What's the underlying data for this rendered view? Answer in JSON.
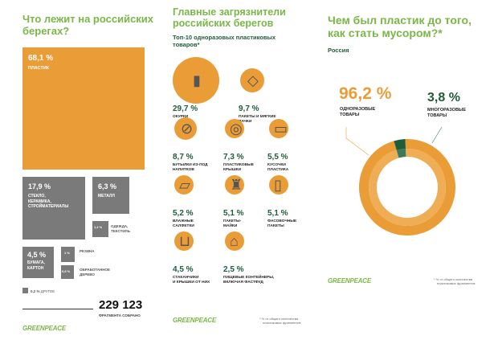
{
  "left": {
    "title_l1": "Что лежит на российских",
    "title_l2": "берегах?",
    "total": "229 123",
    "total_label": "ФРАГМЕНТА СОБРАНО",
    "logo": "GREENPEACE"
  },
  "middle": {
    "title_l1": "Главные загрязнители",
    "title_l2": "российских берегов",
    "subtitle_l1": "Топ-10 одноразовых пластиковых",
    "subtitle_l2": "товаров*",
    "logo": "GREENPEACE",
    "footnote_l1": "* % от общего количества",
    "footnote_l2": "пластиковых фрагментов"
  },
  "right": {
    "title_l1": "Чем был пластик до того,",
    "title_l2": "как стать мусором?*",
    "region": "Россия",
    "logo": "GREENPEACE",
    "footnote_l1": "* % от общего количества",
    "footnote_l2": "пластиковых фрагментов"
  },
  "colors": {
    "orange": "#ea9d37",
    "orange_light": "#efae55",
    "gray": "#7a7a7a",
    "green": "#7ab648",
    "dark_green": "#1f5c3a",
    "dark_green_light": "#3d7a5a"
  },
  "chart_data": [
    {
      "type": "treemap",
      "title": "Что лежит на российских берегах?",
      "items": [
        {
          "label": "68,1 %",
          "name": "ПЛАСТИК",
          "value": 68.1
        },
        {
          "label": "17,9 %",
          "name": "СТЕКЛО, КЕРАМИКА, СТРОЙМАТЕРИАЛЫ",
          "name_l1": "СТЕКЛО,",
          "name_l2": "КЕРАМИКА,",
          "name_l3": "СТРОЙМАТЕРИАЛЫ",
          "value": 17.9
        },
        {
          "label": "6,3 %",
          "name": "МЕТАЛЛ",
          "value": 6.3
        },
        {
          "label": "1,2 %",
          "name_l1": "ОДЕЖДА,",
          "name_l2": "ТЕКСТИЛЬ",
          "value": 1.2
        },
        {
          "label": "4,5 %",
          "name_l1": "БУМАГА,",
          "name_l2": "КАРТОН",
          "value": 4.5
        },
        {
          "label": "1 %",
          "name": "РЕЗИНА",
          "value": 1.0
        },
        {
          "label": "0,6 %",
          "name_l1": "ОБРАБОТАННОЕ",
          "name_l2": "ДЕРЕВО",
          "value": 0.6
        },
        {
          "label": "0,2 %",
          "name": "ДРУГОЕ",
          "value": 0.2
        }
      ]
    },
    {
      "type": "bar",
      "title": "Топ-10 одноразовых пластиковых товаров",
      "items": [
        {
          "label": "29,7 %",
          "l1": "ОКУРКИ",
          "l2": "",
          "value": 29.7
        },
        {
          "label": "9,7 %",
          "l1": "ПАКЕТЫ И МЯГКИЕ",
          "l2": "ПАЧКИ",
          "value": 9.7
        },
        {
          "label": "8,7 %",
          "l1": "БУТЫЛКИ ИЗ-ПОД",
          "l2": "НАПИТКОВ",
          "value": 8.7
        },
        {
          "label": "7,3 %",
          "l1": "ПЛАСТИКОВЫЕ",
          "l2": "КРЫШКИ",
          "value": 7.3
        },
        {
          "label": "5,5 %",
          "l1": "КУСОЧКИ",
          "l2": "ПЛАСТИКА",
          "value": 5.5
        },
        {
          "label": "5,2 %",
          "l1": "ВЛАЖНЫЕ",
          "l2": "САЛФЕТКИ",
          "value": 5.2
        },
        {
          "label": "5,1 %",
          "l1": "ПАКЕТЫ-",
          "l2": "МАЙКИ",
          "value": 5.1
        },
        {
          "label": "5,1 %",
          "l1": "ФАСОВОЧНЫЕ",
          "l2": "ПАКЕТЫ",
          "value": 5.1
        },
        {
          "label": "4,5 %",
          "l1": "СТАКАНЧИКИ",
          "l2": "И КРЫШКИ ОТ НИХ",
          "value": 4.5
        },
        {
          "label": "2,5 %",
          "l1": "ПИЩЕВЫЕ КОНТЕЙНЕРЫ,",
          "l2": "ВКЛЮЧАЯ ФАСТФУД",
          "value": 2.5
        }
      ]
    },
    {
      "type": "pie",
      "title": "Чем был пластик до того, как стать мусором?",
      "slices": [
        {
          "label": "96,2 %",
          "l1": "ОДНОРАЗОВЫЕ",
          "l2": "ТОВАРЫ",
          "value": 96.2
        },
        {
          "label": "3,8 %",
          "l1": "МНОГОРАЗОВЫЕ",
          "l2": "ТОВАРЫ",
          "value": 3.8
        }
      ]
    }
  ]
}
